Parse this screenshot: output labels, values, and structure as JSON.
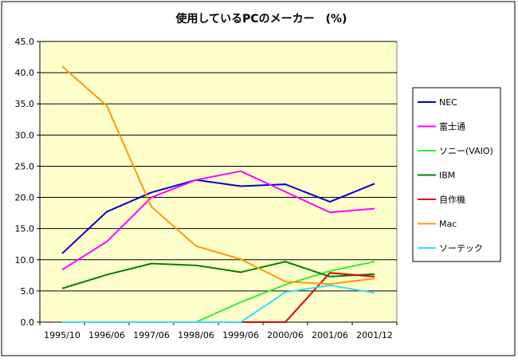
{
  "chart_data": {
    "type": "line",
    "title": "使用しているPCのメーカー　(%)",
    "xlabel": "",
    "ylabel": "",
    "categories": [
      "1995/10",
      "1996/06",
      "1997/06",
      "1998/06",
      "1999/06",
      "2000/06",
      "2001/06",
      "2001/12"
    ],
    "ylim": [
      0,
      45
    ],
    "yticks": [
      "0.0",
      "5.0",
      "10.0",
      "15.0",
      "20.0",
      "25.0",
      "30.0",
      "35.0",
      "40.0",
      "45.0"
    ],
    "grid": "horizontal",
    "legend_position": "right",
    "plot_background": "#ffffcc",
    "series": [
      {
        "name": "NEC",
        "color": "#0000cc",
        "values": [
          11.0,
          17.7,
          20.8,
          22.8,
          21.8,
          22.1,
          19.3,
          22.2
        ]
      },
      {
        "name": "富士通",
        "color": "#ff00ff",
        "values": [
          8.4,
          12.9,
          20.0,
          22.8,
          24.2,
          20.9,
          17.6,
          18.2
        ]
      },
      {
        "name": "ソニー(VAIO)",
        "color": "#33ee33",
        "values": [
          null,
          null,
          null,
          0.0,
          3.2,
          6.0,
          8.2,
          9.7
        ]
      },
      {
        "name": "IBM",
        "color": "#008000",
        "values": [
          5.4,
          7.6,
          9.4,
          9.1,
          8.0,
          9.7,
          7.3,
          7.7
        ]
      },
      {
        "name": "自作機",
        "color": "#dd0000",
        "values": [
          null,
          null,
          null,
          null,
          0.0,
          0.0,
          7.9,
          7.3
        ]
      },
      {
        "name": "Mac",
        "color": "#ff9900",
        "values": [
          41.0,
          34.7,
          18.5,
          12.2,
          10.1,
          6.5,
          6.1,
          7.0
        ]
      },
      {
        "name": "ソーテック",
        "color": "#33ddff",
        "values": [
          0.0,
          0.0,
          0.0,
          0.0,
          0.0,
          4.8,
          5.9,
          4.7
        ]
      }
    ]
  }
}
